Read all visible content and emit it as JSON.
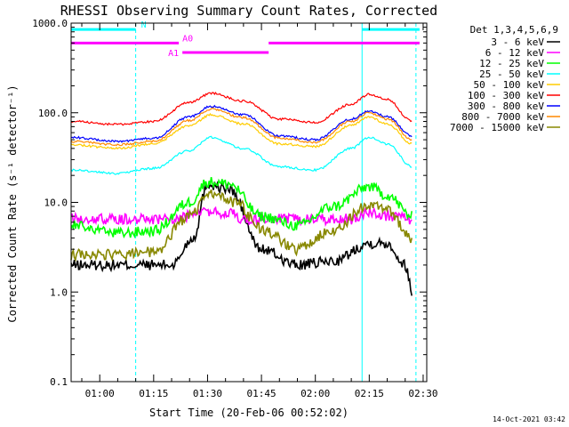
{
  "chart_data": {
    "type": "line",
    "title": "RHESSI Observing Summary Count Rates, Corrected",
    "xlabel": "Start Time (20-Feb-06 00:52:02)",
    "ylabel": "Corrected Count Rate (s⁻¹ detector⁻¹)",
    "y_scale": "log",
    "ylim": [
      0.1,
      1000
    ],
    "xlim": [
      "00:52:02",
      "02:31:00"
    ],
    "y_ticks": [
      "0.1",
      "1.0",
      "10.0",
      "100.0",
      "1000.0"
    ],
    "x_ticks": [
      "01:00",
      "01:15",
      "01:30",
      "01:45",
      "02:00",
      "02:15",
      "02:30"
    ],
    "legend_title": "Det 1,3,4,5,6,9",
    "legend_position": "right",
    "timestamp": "14-Oct-2021 03:42",
    "series": [
      {
        "name": "3 - 6 keV",
        "color": "#000000",
        "x": [
          "00:52:02",
          "01:05",
          "01:20",
          "01:26",
          "01:30",
          "01:36",
          "01:45",
          "01:55",
          "02:05",
          "02:15",
          "02:20",
          "02:25",
          "02:27"
        ],
        "values": [
          2.0,
          2.0,
          2.0,
          4.0,
          16.0,
          14.0,
          3.0,
          2.0,
          2.2,
          3.5,
          3.5,
          2.0,
          1.0
        ]
      },
      {
        "name": "6 - 12 keV",
        "color": "#ff00ff",
        "x": [
          "00:52:02",
          "01:20",
          "01:25",
          "01:30",
          "01:36",
          "01:40",
          "01:50",
          "02:00",
          "02:10",
          "02:15",
          "02:20",
          "02:27"
        ],
        "values": [
          6.5,
          6.5,
          7.0,
          8.0,
          7.5,
          6.5,
          6.5,
          6.5,
          6.5,
          8.0,
          7.0,
          6.5
        ]
      },
      {
        "name": "12 - 25 keV",
        "color": "#00ff00",
        "x": [
          "00:52:02",
          "01:05",
          "01:15",
          "01:25",
          "01:30",
          "01:36",
          "01:45",
          "01:55",
          "02:05",
          "02:15",
          "02:20",
          "02:27"
        ],
        "values": [
          5.5,
          4.5,
          4.8,
          10.0,
          17.0,
          16.0,
          7.0,
          5.5,
          9.0,
          15.0,
          12.0,
          7.0
        ]
      },
      {
        "name": "25 - 50 keV",
        "color": "#00ffff",
        "x": [
          "00:52:02",
          "01:05",
          "01:15",
          "01:25",
          "01:31",
          "01:40",
          "01:50",
          "02:00",
          "02:10",
          "02:15",
          "02:20",
          "02:27"
        ],
        "values": [
          23,
          21,
          24,
          38,
          53,
          40,
          25,
          23,
          40,
          53,
          45,
          25
        ]
      },
      {
        "name": "50 - 100 keV",
        "color": "#ffcc00",
        "x": [
          "00:52:02",
          "01:05",
          "01:15",
          "01:25",
          "01:31",
          "01:40",
          "01:50",
          "02:00",
          "02:10",
          "02:15",
          "02:20",
          "02:27"
        ],
        "values": [
          44,
          40,
          45,
          72,
          95,
          75,
          45,
          42,
          72,
          90,
          75,
          45
        ]
      },
      {
        "name": "100 - 300 keV",
        "color": "#ff0000",
        "x": [
          "00:52:02",
          "01:05",
          "01:15",
          "01:25",
          "01:31",
          "01:40",
          "01:50",
          "02:00",
          "02:10",
          "02:15",
          "02:20",
          "02:27"
        ],
        "values": [
          80,
          74,
          80,
          130,
          165,
          135,
          85,
          78,
          125,
          160,
          140,
          80
        ]
      },
      {
        "name": "300 - 800 keV",
        "color": "#0000ff",
        "x": [
          "00:52:02",
          "01:05",
          "01:15",
          "01:25",
          "01:31",
          "01:40",
          "01:50",
          "02:00",
          "02:10",
          "02:15",
          "02:20",
          "02:27"
        ],
        "values": [
          53,
          48,
          52,
          90,
          118,
          95,
          55,
          50,
          85,
          105,
          90,
          55
        ]
      },
      {
        "name": "800 - 7000 keV",
        "color": "#ff8800",
        "x": [
          "00:52:02",
          "01:05",
          "01:15",
          "01:25",
          "01:31",
          "01:40",
          "01:50",
          "02:00",
          "02:10",
          "02:15",
          "02:20",
          "02:27"
        ],
        "values": [
          48,
          44,
          48,
          82,
          110,
          88,
          52,
          47,
          80,
          100,
          85,
          50
        ]
      },
      {
        "name": "7000 - 15000 keV",
        "color": "#888800",
        "x": [
          "00:52:02",
          "01:05",
          "01:15",
          "01:25",
          "01:31",
          "01:38",
          "01:45",
          "01:55",
          "02:05",
          "02:15",
          "02:20",
          "02:27"
        ],
        "values": [
          2.6,
          2.6,
          2.8,
          7.0,
          12.5,
          10.0,
          5.0,
          3.0,
          5.0,
          9.5,
          8.0,
          4.0
        ]
      }
    ],
    "annotations": [
      {
        "label": "N",
        "color": "#00ffff",
        "segments": [
          [
            "00:52:02",
            "01:10"
          ],
          [
            "02:13",
            "02:29"
          ]
        ],
        "level": 850
      },
      {
        "label": "A0",
        "color": "#ff00ff",
        "segments": [
          [
            "00:52:02",
            "01:22"
          ],
          [
            "01:47",
            "02:29"
          ]
        ],
        "level": 600
      },
      {
        "label": "A1",
        "color": "#ff00ff",
        "segments": [
          [
            "01:23",
            "01:47"
          ]
        ],
        "level": 470
      }
    ],
    "vertical_markers": [
      {
        "time": "00:52:02",
        "color": "#00ffff",
        "style": "solid"
      },
      {
        "time": "01:10",
        "color": "#00ffff",
        "style": "dashed"
      },
      {
        "time": "02:13",
        "color": "#00ffff",
        "style": "solid"
      },
      {
        "time": "02:28",
        "color": "#00ffff",
        "style": "dashed"
      }
    ],
    "grid": false
  }
}
